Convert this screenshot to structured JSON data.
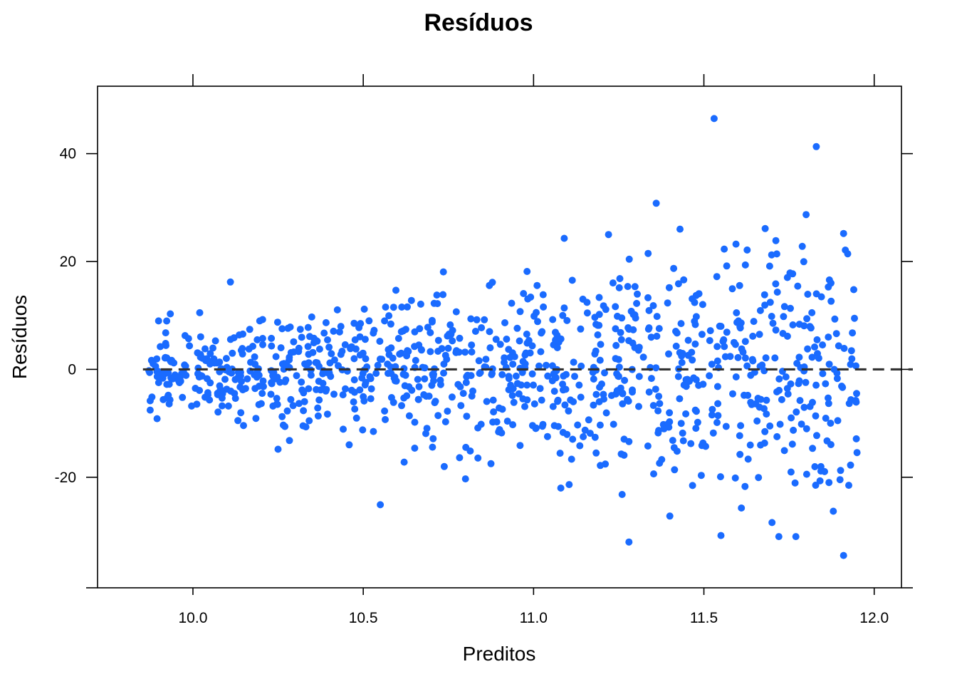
{
  "chart_data": {
    "type": "scatter",
    "title": "Resíduos",
    "xlabel": "Preditos",
    "ylabel": "Resíduos",
    "xlim": [
      9.72,
      12.08
    ],
    "ylim": [
      -40.5,
      52.5
    ],
    "x_ticks": [
      10.0,
      10.5,
      11.0,
      11.5,
      12.0
    ],
    "x_tick_labels": [
      "10.0",
      "10.5",
      "11.0",
      "11.5",
      "12.0"
    ],
    "y_ticks": [
      -20,
      0,
      20,
      40
    ],
    "y_tick_labels": [
      "-20",
      "0",
      "20",
      "40"
    ],
    "reference_line": {
      "y": 0,
      "style": "dashed"
    },
    "grid": false,
    "point_color": "#1a6bff",
    "notable_points": [
      {
        "x": 11.53,
        "y": 46.5
      },
      {
        "x": 11.83,
        "y": 41.3
      },
      {
        "x": 11.36,
        "y": 30.8
      },
      {
        "x": 11.8,
        "y": 28.7
      },
      {
        "x": 11.43,
        "y": 26.0
      },
      {
        "x": 11.68,
        "y": 26.1
      },
      {
        "x": 11.22,
        "y": 25.0
      },
      {
        "x": 11.91,
        "y": 25.2
      },
      {
        "x": 11.09,
        "y": 24.3
      },
      {
        "x": 10.11,
        "y": 16.2
      },
      {
        "x": 10.02,
        "y": 10.5
      },
      {
        "x": 10.55,
        "y": -25.1
      },
      {
        "x": 11.28,
        "y": -32.0
      },
      {
        "x": 11.91,
        "y": -34.5
      },
      {
        "x": 11.72,
        "y": -31.0
      },
      {
        "x": 11.77,
        "y": -31.0
      },
      {
        "x": 11.55,
        "y": -30.8
      },
      {
        "x": 11.7,
        "y": -28.4
      },
      {
        "x": 11.4,
        "y": -27.2
      },
      {
        "x": 11.88,
        "y": -26.3
      },
      {
        "x": 11.26,
        "y": -23.2
      },
      {
        "x": 11.08,
        "y": -22.0
      },
      {
        "x": 10.8,
        "y": -20.3
      },
      {
        "x": 10.25,
        "y": -14.8
      },
      {
        "x": 10.62,
        "y": -17.2
      },
      {
        "x": 11.61,
        "y": -25.7
      }
    ],
    "cloud": {
      "n_points": 1000,
      "x_range": [
        9.87,
        11.95
      ],
      "spread_sd_at_x_min": 3.8,
      "spread_sd_at_x_max": 12.5,
      "y_center": 0
    }
  }
}
